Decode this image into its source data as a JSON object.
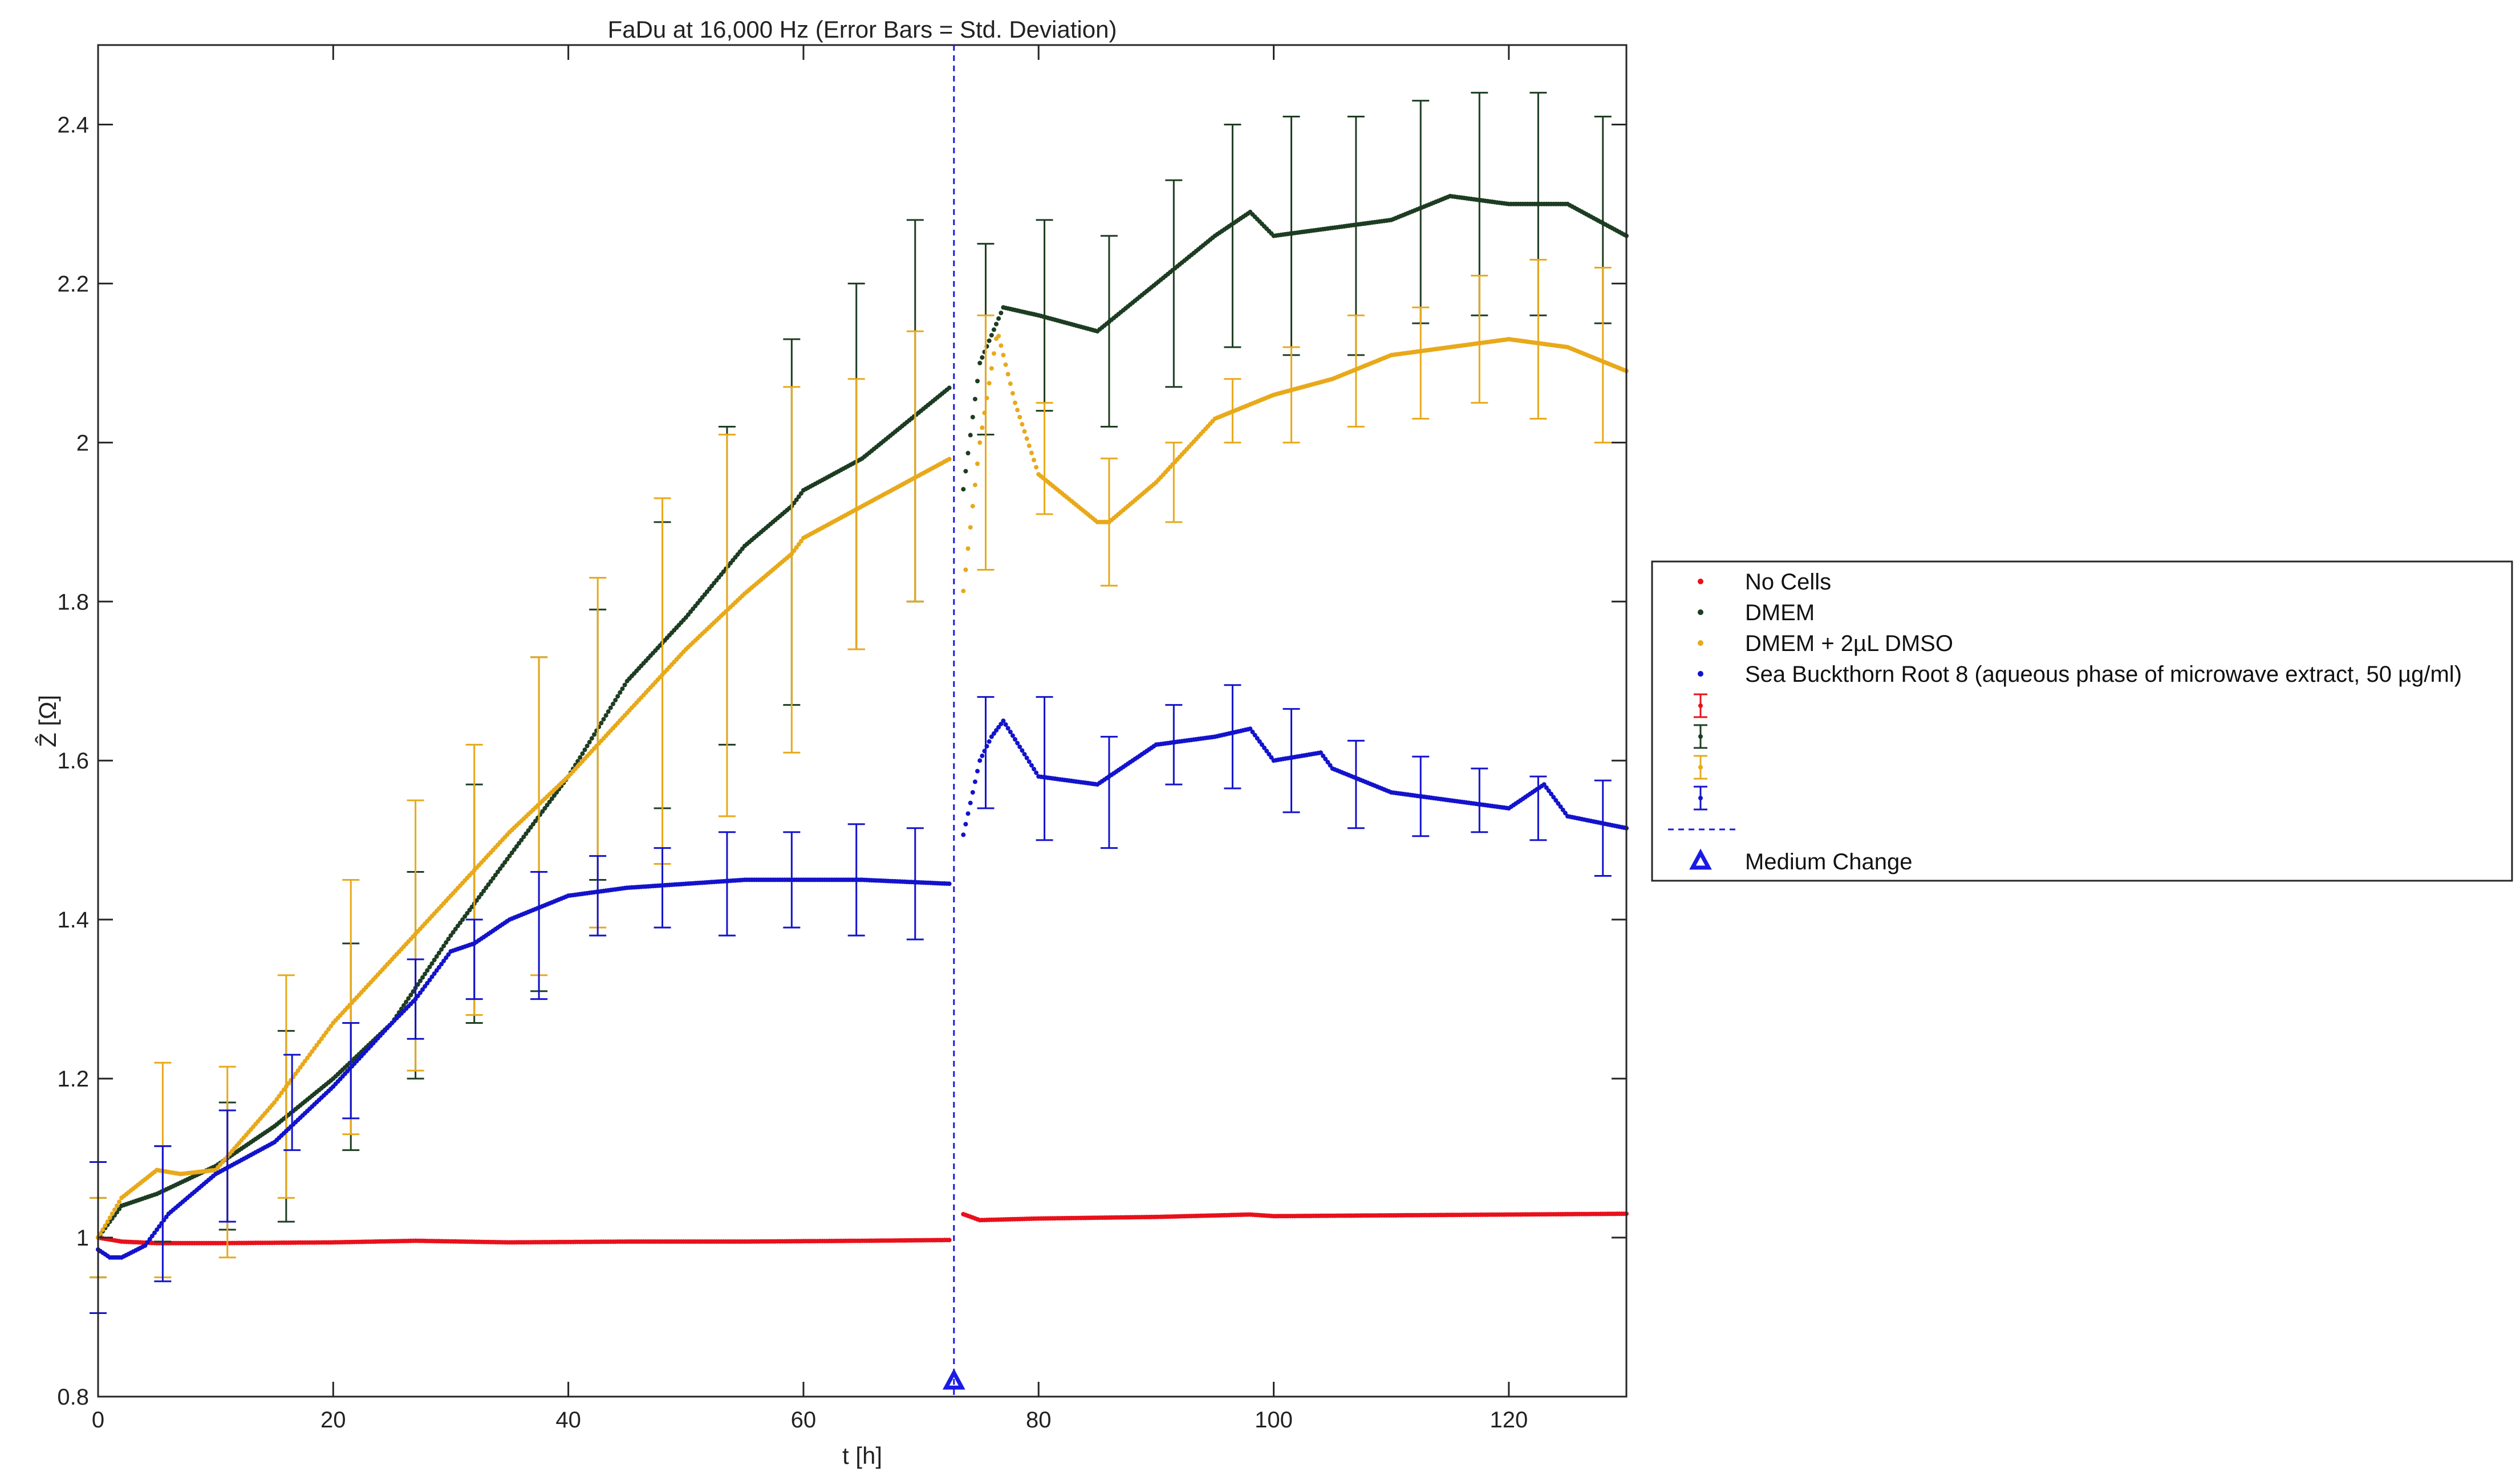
{
  "chart_data": {
    "type": "scatter",
    "title": "FaDu at 16,000 Hz (Error Bars = Std. Deviation)",
    "xlabel": "t [h]",
    "ylabel": "Ẑ [Ω]",
    "xlim": [
      0,
      130
    ],
    "ylim": [
      0.8,
      2.5
    ],
    "xticks": [
      0,
      20,
      40,
      60,
      80,
      100,
      120
    ],
    "xtick_labels": [
      "0",
      "20",
      "40",
      "60",
      "80",
      "100",
      "120"
    ],
    "yticks": [
      0.8,
      1.0,
      1.2,
      1.4,
      1.6,
      1.8,
      2.0,
      2.2,
      2.4
    ],
    "ytick_labels": [
      "0.8",
      "1",
      "1.2",
      "1.4",
      "1.6",
      "1.8",
      "2",
      "2.2",
      "2.4"
    ],
    "grid": false,
    "legend_position": "outside-right",
    "medium_change": {
      "label": "Medium Change",
      "x": 72.8,
      "y": 0.82
    },
    "legend_errorbar_entries": [
      "",
      "",
      "",
      ""
    ],
    "colors": {
      "no_cells": "#e8111b",
      "dmem": "#1d3d22",
      "dmso": "#e8a91a",
      "seabuckthorn": "#1313cc",
      "medium_change": "#1a1ae6"
    },
    "series": [
      {
        "name": "No Cells",
        "color_key": "no_cells",
        "x": [
          0,
          2,
          5,
          10,
          20,
          27,
          35,
          45,
          55,
          65,
          72.5,
          73.5,
          75,
          80,
          90,
          98,
          100,
          110,
          120,
          130
        ],
        "y": [
          1.0,
          0.995,
          0.993,
          0.993,
          0.994,
          0.996,
          0.994,
          0.995,
          0.995,
          0.996,
          0.997,
          1.03,
          1.022,
          1.024,
          1.026,
          1.029,
          1.027,
          1.028,
          1.029,
          1.03
        ],
        "err_x": [],
        "err_y": [],
        "err_sd": []
      },
      {
        "name": "DMEM",
        "color_key": "dmem",
        "x": [
          0,
          2,
          5,
          10,
          15,
          20,
          25,
          30,
          35,
          40,
          45,
          50,
          55,
          59,
          60,
          65,
          70,
          72.5,
          73.5,
          75,
          77,
          80,
          85,
          90,
          95,
          98,
          100,
          105,
          110,
          115,
          120,
          125,
          130
        ],
        "y": [
          1.0,
          1.04,
          1.055,
          1.09,
          1.14,
          1.2,
          1.27,
          1.38,
          1.48,
          1.58,
          1.7,
          1.78,
          1.87,
          1.92,
          1.94,
          1.98,
          2.04,
          2.07,
          1.93,
          2.1,
          2.17,
          2.16,
          2.14,
          2.2,
          2.26,
          2.29,
          2.26,
          2.27,
          2.28,
          2.31,
          2.3,
          2.3,
          2.26
        ],
        "err_x": [
          0,
          5.5,
          11,
          16,
          21.5,
          27,
          32,
          37.5,
          42.5,
          48,
          53.5,
          59,
          64.5,
          69.5,
          75.5,
          80.5,
          86,
          91.5,
          96.5,
          101.5,
          107,
          112.5,
          117.5,
          122.5,
          128
        ],
        "err_y": [
          1.0,
          1.055,
          1.09,
          1.14,
          1.24,
          1.33,
          1.42,
          1.52,
          1.62,
          1.72,
          1.82,
          1.9,
          1.97,
          2.04,
          2.13,
          2.16,
          2.14,
          2.2,
          2.26,
          2.26,
          2.26,
          2.29,
          2.3,
          2.3,
          2.28
        ],
        "err_sd": [
          0.05,
          0.06,
          0.08,
          0.12,
          0.13,
          0.13,
          0.15,
          0.21,
          0.17,
          0.18,
          0.2,
          0.23,
          0.23,
          0.24,
          0.12,
          0.12,
          0.12,
          0.13,
          0.14,
          0.15,
          0.15,
          0.14,
          0.14,
          0.14,
          0.13
        ]
      },
      {
        "name": "DMEM + 2µL DMSO",
        "color_key": "dmso",
        "x": [
          0,
          2,
          5,
          7,
          10,
          15,
          20,
          25,
          30,
          35,
          40,
          45,
          50,
          55,
          59,
          60,
          65,
          70,
          72.5,
          73.5,
          75,
          76.5,
          78,
          80,
          85,
          86,
          90,
          95,
          100,
          105,
          110,
          115,
          120,
          125,
          130
        ],
        "y": [
          1.0,
          1.05,
          1.085,
          1.08,
          1.085,
          1.17,
          1.27,
          1.35,
          1.43,
          1.51,
          1.58,
          1.66,
          1.74,
          1.81,
          1.86,
          1.88,
          1.92,
          1.96,
          1.98,
          1.8,
          2.0,
          2.14,
          2.05,
          1.96,
          1.9,
          1.9,
          1.95,
          2.03,
          2.06,
          2.08,
          2.11,
          2.12,
          2.13,
          2.12,
          2.09
        ],
        "err_x": [
          0,
          5.5,
          11,
          16,
          21.5,
          27,
          32,
          37.5,
          42.5,
          48,
          53.5,
          59,
          64.5,
          69.5,
          75.5,
          80.5,
          86,
          91.5,
          96.5,
          101.5,
          107,
          112.5,
          117.5,
          122.5,
          128
        ],
        "err_y": [
          1.0,
          1.085,
          1.095,
          1.19,
          1.29,
          1.38,
          1.45,
          1.53,
          1.61,
          1.7,
          1.77,
          1.84,
          1.91,
          1.97,
          2.0,
          1.98,
          1.9,
          1.95,
          2.04,
          2.06,
          2.09,
          2.1,
          2.13,
          2.13,
          2.11
        ],
        "err_sd": [
          0.05,
          0.135,
          0.12,
          0.14,
          0.16,
          0.17,
          0.17,
          0.2,
          0.22,
          0.23,
          0.24,
          0.23,
          0.17,
          0.17,
          0.16,
          0.07,
          0.08,
          0.05,
          0.04,
          0.06,
          0.07,
          0.07,
          0.08,
          0.1,
          0.11
        ]
      },
      {
        "name": "Sea Buckthorn Root 8 (aqueous phase of microwave extract, 50 µg/ml)",
        "color_key": "seabuckthorn",
        "x": [
          0,
          1,
          2,
          4,
          6,
          10,
          15,
          20,
          25,
          27,
          30,
          32,
          35,
          40,
          45,
          50,
          55,
          60,
          62,
          65,
          72.5,
          73.5,
          75,
          76,
          77,
          80,
          85,
          90,
          95,
          98,
          100,
          104,
          105,
          110,
          115,
          120,
          123,
          125,
          130
        ],
        "y": [
          0.985,
          0.975,
          0.975,
          0.99,
          1.03,
          1.08,
          1.12,
          1.19,
          1.27,
          1.3,
          1.36,
          1.37,
          1.4,
          1.43,
          1.44,
          1.445,
          1.45,
          1.45,
          1.45,
          1.45,
          1.445,
          1.5,
          1.6,
          1.63,
          1.65,
          1.58,
          1.57,
          1.62,
          1.63,
          1.64,
          1.6,
          1.61,
          1.59,
          1.56,
          1.55,
          1.54,
          1.57,
          1.53,
          1.515
        ],
        "err_x": [
          0,
          5.5,
          11,
          16.5,
          21.5,
          27,
          32,
          37.5,
          42.5,
          48,
          53.5,
          59,
          64.5,
          69.5,
          75.5,
          80.5,
          86,
          91.5,
          96.5,
          101.5,
          107,
          112.5,
          117.5,
          122.5,
          128
        ],
        "err_y": [
          1.0,
          1.03,
          1.09,
          1.17,
          1.21,
          1.3,
          1.35,
          1.38,
          1.43,
          1.44,
          1.445,
          1.45,
          1.45,
          1.445,
          1.61,
          1.59,
          1.56,
          1.62,
          1.63,
          1.6,
          1.57,
          1.555,
          1.55,
          1.54,
          1.515
        ],
        "err_sd": [
          0.095,
          0.085,
          0.07,
          0.06,
          0.06,
          0.05,
          0.05,
          0.08,
          0.05,
          0.05,
          0.065,
          0.06,
          0.07,
          0.07,
          0.07,
          0.09,
          0.07,
          0.05,
          0.065,
          0.065,
          0.055,
          0.05,
          0.04,
          0.04,
          0.06
        ]
      }
    ]
  }
}
